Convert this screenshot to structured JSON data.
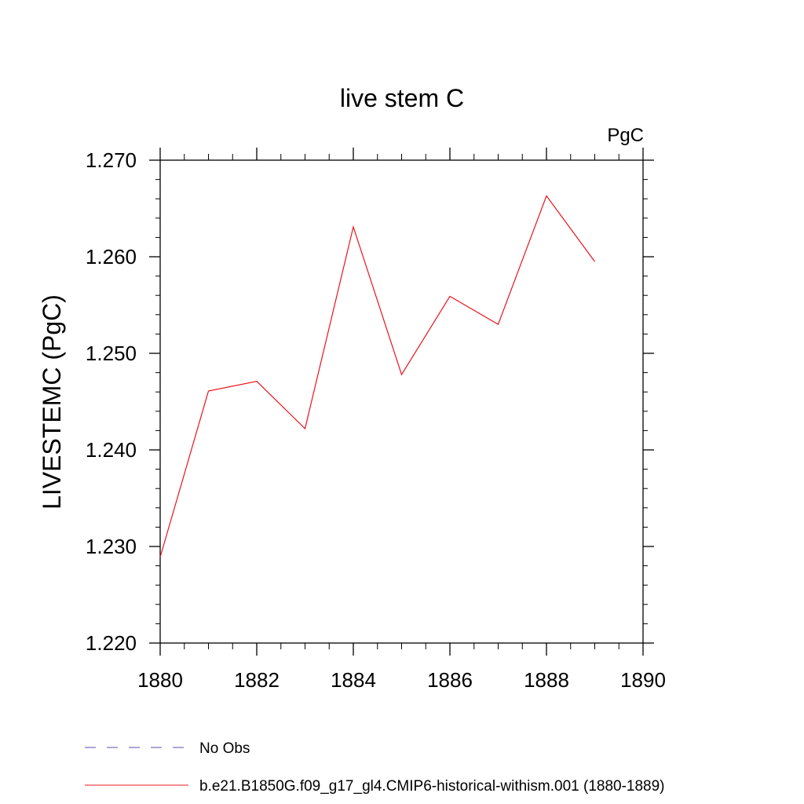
{
  "chart_data": {
    "type": "line",
    "title": "live stem C",
    "units": "PgC",
    "xlabel": "",
    "ylabel": "LIVESTEMC  (PgC)",
    "xlim": [
      1880,
      1890
    ],
    "ylim": [
      1.22,
      1.27
    ],
    "xticks": [
      "1880",
      "1882",
      "1884",
      "1886",
      "1888",
      "1890"
    ],
    "yticks": [
      "1.220",
      "1.230",
      "1.240",
      "1.250",
      "1.260",
      "1.270"
    ],
    "grid": false,
    "series": [
      {
        "name": "b.e21.B1850G.f09_g17_gl4.CMIP6-historical-withism.001 (1880-1889)",
        "color": "#e8141c",
        "x": [
          1880,
          1881,
          1882,
          1883,
          1884,
          1885,
          1886,
          1887,
          1888,
          1889
        ],
        "y": [
          1.2289,
          1.2461,
          1.2471,
          1.2422,
          1.2631,
          1.2478,
          1.2559,
          1.253,
          1.2663,
          1.2595
        ]
      }
    ],
    "legend": {
      "placement": "bottom-left",
      "entries": [
        {
          "label": "No Obs",
          "color": "#5a4fa8",
          "style": "dashed"
        },
        {
          "label": "b.e21.B1850G.f09_g17_gl4.CMIP6-historical-withism.001 (1880-1889)",
          "color": "#e8141c",
          "style": "solid"
        }
      ]
    }
  }
}
